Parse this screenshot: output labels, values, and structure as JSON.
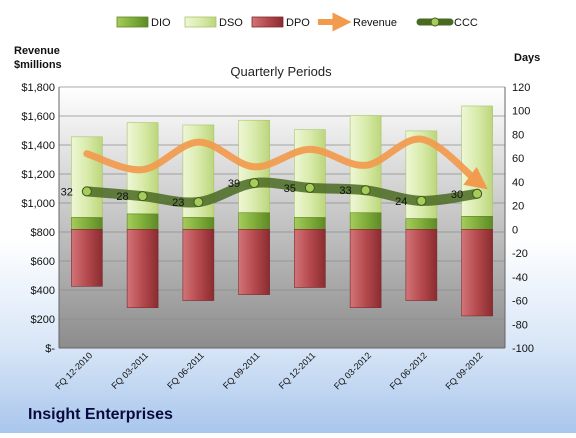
{
  "company": "Insight Enterprises",
  "chart_data": {
    "type": "bar",
    "title": "Quarterly Periods",
    "left_axis_label": "Revenue\n$millions",
    "right_axis_label": "Days",
    "categories": [
      "FQ 12-2010",
      "FQ 03-2011",
      "FQ 06-2011",
      "FQ 09-2011",
      "FQ 12-2011",
      "FQ 03-2012",
      "FQ 06-2012",
      "FQ 09-2012"
    ],
    "left_ylim": [
      0,
      1800
    ],
    "left_ticks": [
      0,
      200,
      400,
      600,
      800,
      1000,
      1200,
      1400,
      1600,
      1800
    ],
    "left_tick_labels": [
      "$-",
      "$200",
      "$400",
      "$600",
      "$800",
      "$1,000",
      "$1,200",
      "$1,400",
      "$1,600",
      "$1,800"
    ],
    "right_ylim": [
      -100,
      120
    ],
    "right_ticks": [
      -100,
      -80,
      -60,
      -40,
      -20,
      0,
      20,
      40,
      60,
      80,
      100,
      120
    ],
    "legend_position": "top",
    "grid": true,
    "series": [
      {
        "name": "DIO",
        "axis": "right",
        "kind": "stacked-bar",
        "color": "#7fae3a",
        "values": [
          10,
          13,
          10,
          14,
          10,
          14,
          9,
          11
        ]
      },
      {
        "name": "DSO",
        "axis": "right",
        "kind": "stacked-bar",
        "color": "#e2f0bf",
        "values": [
          68,
          77,
          78,
          78,
          74,
          82,
          74,
          93
        ]
      },
      {
        "name": "DPO",
        "axis": "right",
        "kind": "negative-bar",
        "color": "#b54a4e",
        "values": [
          -48,
          -66,
          -60,
          -55,
          -49,
          -66,
          -60,
          -73
        ]
      },
      {
        "name": "Revenue",
        "axis": "left",
        "kind": "line",
        "color": "#f29a4d",
        "values": [
          1340,
          1230,
          1420,
          1250,
          1370,
          1260,
          1440,
          1150
        ]
      },
      {
        "name": "CCC",
        "axis": "right",
        "kind": "line",
        "color": "#5a7a2a",
        "values": [
          32,
          28,
          23,
          39,
          35,
          33,
          24,
          30
        ]
      }
    ],
    "ccc_labels": [
      "32",
      "28",
      "23",
      "39",
      "35",
      "33",
      "24",
      "30"
    ]
  }
}
